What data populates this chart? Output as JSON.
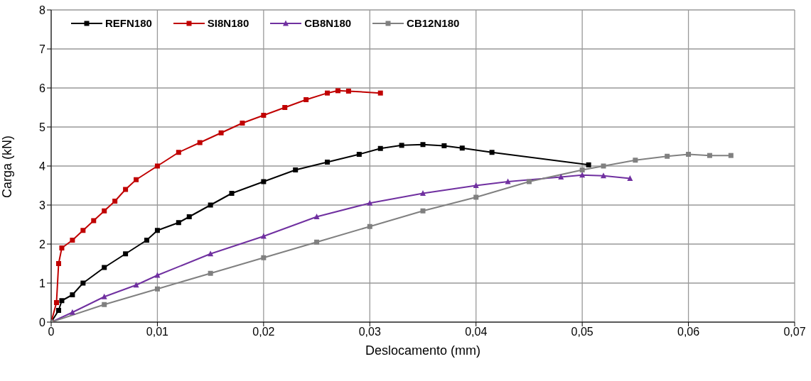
{
  "chart_data": {
    "type": "line",
    "xlabel": "Deslocamento (mm)",
    "ylabel": "Carga (kN)",
    "xlim": [
      0,
      0.07
    ],
    "ylim": [
      0,
      8
    ],
    "xticks": [
      0,
      {
        "value": 0.01,
        "label": "0,01"
      },
      {
        "value": 0.02,
        "label": "0,02"
      },
      {
        "value": 0.03,
        "label": "0,03"
      },
      {
        "value": 0.04,
        "label": "0,04"
      },
      {
        "value": 0.05,
        "label": "0,05"
      },
      {
        "value": 0.06,
        "label": "0,06"
      },
      {
        "value": 0.07,
        "label": "0,07"
      }
    ],
    "yticks": [
      0,
      1,
      2,
      3,
      4,
      5,
      6,
      7,
      8
    ],
    "grid": true,
    "legend": "top left",
    "line_style": "solid",
    "series": [
      {
        "name": "REFN180",
        "color": "#000000",
        "marker": "square",
        "x": [
          0,
          0.0007,
          0.001,
          0.002,
          0.003,
          0.005,
          0.007,
          0.009,
          0.01,
          0.012,
          0.013,
          0.015,
          0.017,
          0.02,
          0.023,
          0.026,
          0.029,
          0.031,
          0.033,
          0.035,
          0.037,
          0.0387,
          0.0415,
          0.0506
        ],
        "values": [
          0,
          0.3,
          0.55,
          0.7,
          1.0,
          1.4,
          1.75,
          2.1,
          2.35,
          2.55,
          2.7,
          3.0,
          3.3,
          3.6,
          3.9,
          4.1,
          4.3,
          4.45,
          4.53,
          4.55,
          4.52,
          4.46,
          4.35,
          4.03
        ]
      },
      {
        "name": "SI8N180",
        "color": "#c00000",
        "marker": "square",
        "x": [
          0,
          0.0005,
          0.0007,
          0.001,
          0.002,
          0.003,
          0.004,
          0.005,
          0.006,
          0.007,
          0.008,
          0.01,
          0.012,
          0.014,
          0.016,
          0.018,
          0.02,
          0.022,
          0.024,
          0.026,
          0.027,
          0.028,
          0.031
        ],
        "values": [
          0,
          0.5,
          1.5,
          1.9,
          2.1,
          2.35,
          2.6,
          2.85,
          3.1,
          3.4,
          3.65,
          4.0,
          4.35,
          4.6,
          4.85,
          5.1,
          5.3,
          5.5,
          5.7,
          5.87,
          5.93,
          5.92,
          5.87
        ]
      },
      {
        "name": "CB8N180",
        "color": "#7030a0",
        "marker": "triangle",
        "x": [
          0,
          0.002,
          0.005,
          0.008,
          0.01,
          0.015,
          0.02,
          0.025,
          0.03,
          0.035,
          0.04,
          0.043,
          0.048,
          0.05,
          0.052,
          0.0545
        ],
        "values": [
          0,
          0.25,
          0.65,
          0.95,
          1.2,
          1.75,
          2.2,
          2.7,
          3.05,
          3.3,
          3.5,
          3.6,
          3.72,
          3.77,
          3.75,
          3.68
        ]
      },
      {
        "name": "CB12N180",
        "color": "#808080",
        "marker": "square",
        "x": [
          0,
          0.005,
          0.01,
          0.015,
          0.02,
          0.025,
          0.03,
          0.035,
          0.04,
          0.045,
          0.05,
          0.052,
          0.055,
          0.058,
          0.06,
          0.062,
          0.064
        ],
        "values": [
          0,
          0.45,
          0.85,
          1.25,
          1.65,
          2.05,
          2.45,
          2.85,
          3.2,
          3.6,
          3.9,
          4.0,
          4.15,
          4.25,
          4.3,
          4.27,
          4.27
        ]
      }
    ]
  }
}
